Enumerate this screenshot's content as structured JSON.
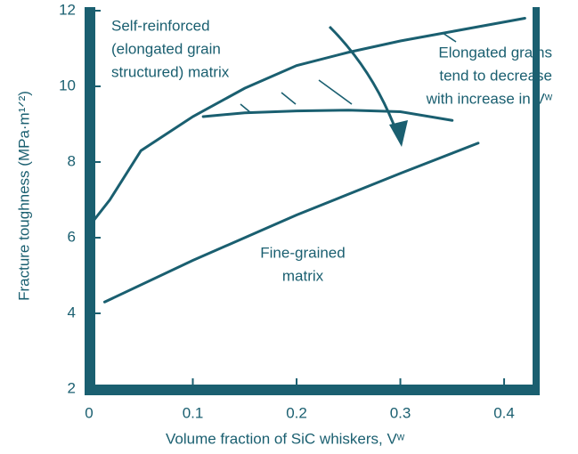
{
  "chart_data": {
    "type": "line",
    "xlabel": "Volume fraction of SiC whiskers, Vʷ",
    "ylabel": "Fracture toughness (MPa·m¹ᐟ²)",
    "xlim": [
      0,
      0.43
    ],
    "ylim": [
      2,
      12
    ],
    "xticks": [
      0,
      0.1,
      0.2,
      0.3,
      0.4
    ],
    "yticks": [
      2,
      4,
      6,
      8,
      10,
      12
    ],
    "series": [
      {
        "color": "#1a5f70",
        "x": [
          0,
          0.02,
          0.05,
          0.1,
          0.15,
          0.2,
          0.25,
          0.3,
          0.35,
          0.42
        ],
        "values": [
          6.3,
          7.0,
          8.3,
          9.2,
          9.95,
          10.55,
          10.9,
          11.2,
          11.45,
          11.8
        ]
      },
      {
        "color": "#1a5f70",
        "x": [
          0.11,
          0.15,
          0.2,
          0.25,
          0.3,
          0.35
        ],
        "values": [
          9.2,
          9.3,
          9.35,
          9.37,
          9.33,
          9.1
        ]
      },
      {
        "color": "#1a5f70",
        "x": [
          0.015,
          0.1,
          0.2,
          0.3,
          0.375
        ],
        "values": [
          4.3,
          5.4,
          6.6,
          7.7,
          8.5
        ]
      }
    ],
    "annotations": [
      {
        "lines": [
          "Self-reinforced",
          "(elongated grain",
          "structured) matrix"
        ]
      },
      {
        "lines": [
          "Elongated grains",
          "tend to decrease",
          "with increase in Vʷ"
        ]
      },
      {
        "lines": [
          "Fine-grained",
          "matrix"
        ]
      }
    ]
  }
}
